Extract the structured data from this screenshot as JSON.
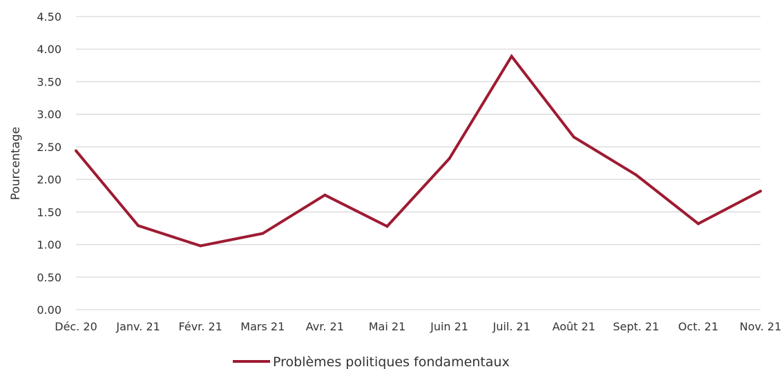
{
  "chart_data": {
    "type": "line",
    "title": "",
    "xlabel": "",
    "ylabel": "Pourcentage",
    "categories": [
      "Déc. 20",
      "Janv. 21",
      "Févr. 21",
      "Mars 21",
      "Avr. 21",
      "Mai 21",
      "Juin 21",
      "Juil. 21",
      "Août 21",
      "Sept. 21",
      "Oct. 21",
      "Nov. 21"
    ],
    "y_ticks": [
      "0.00",
      "0.50",
      "1.00",
      "1.50",
      "2.00",
      "2.50",
      "3.00",
      "3.50",
      "4.00",
      "4.50"
    ],
    "ylim": [
      0,
      4.5
    ],
    "grid": "horizontal",
    "legend_position": "bottom",
    "series": [
      {
        "name": "Problèmes politiques fondamentaux",
        "color": "#9e1b32",
        "values": [
          2.44,
          1.29,
          0.98,
          1.17,
          1.76,
          1.28,
          2.32,
          3.89,
          2.65,
          2.07,
          1.32,
          1.82
        ]
      }
    ]
  }
}
